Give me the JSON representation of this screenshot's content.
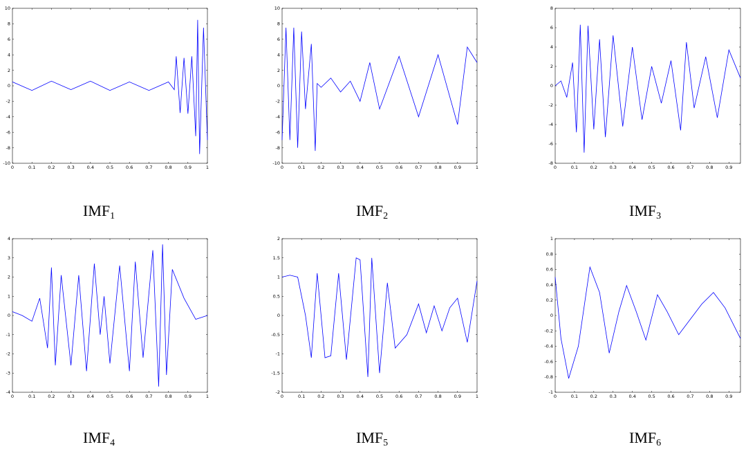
{
  "panels": [
    {
      "caption_main": "IMF",
      "caption_sub": "1"
    },
    {
      "caption_main": "IMF",
      "caption_sub": "2"
    },
    {
      "caption_main": "IMF",
      "caption_sub": "3"
    },
    {
      "caption_main": "IMF",
      "caption_sub": "4"
    },
    {
      "caption_main": "IMF",
      "caption_sub": "5"
    },
    {
      "caption_main": "IMF",
      "caption_sub": "6"
    }
  ],
  "chart_data": [
    {
      "type": "line",
      "title": "",
      "xlabel": "",
      "ylabel": "",
      "xlim": [
        0,
        1
      ],
      "ylim": [
        -10,
        10
      ],
      "xticks": [
        "0",
        "0.1",
        "0.2",
        "0.3",
        "0.4",
        "0.5",
        "0.6",
        "0.7",
        "0.8",
        "0.9",
        "1"
      ],
      "yticks": [
        "-10",
        "-8",
        "-6",
        "-4",
        "-2",
        "0",
        "2",
        "4",
        "6",
        "8",
        "10"
      ],
      "grid": false,
      "color": "#0000ff",
      "series": [
        {
          "x": [
            0,
            0.1,
            0.2,
            0.3,
            0.4,
            0.5,
            0.6,
            0.7,
            0.8,
            0.83,
            0.84,
            0.86,
            0.88,
            0.9,
            0.92,
            0.94,
            0.95,
            0.96,
            0.98,
            1
          ],
          "y": [
            0.5,
            -0.6,
            0.6,
            -0.5,
            0.6,
            -0.6,
            0.5,
            -0.6,
            0.5,
            -0.5,
            3.8,
            -3.5,
            3.6,
            -3.6,
            3.8,
            -6.5,
            8.5,
            -8.8,
            7.5,
            -7
          ]
        }
      ]
    },
    {
      "type": "line",
      "title": "",
      "xlabel": "",
      "ylabel": "",
      "xlim": [
        0,
        1
      ],
      "ylim": [
        -10,
        10
      ],
      "xticks": [
        "0",
        "0.1",
        "0.2",
        "0.3",
        "0.4",
        "0.5",
        "0.6",
        "0.7",
        "0.8",
        "0.9",
        "1"
      ],
      "yticks": [
        "-10",
        "-8",
        "-6",
        "-4",
        "-2",
        "0",
        "2",
        "4",
        "6",
        "8",
        "10"
      ],
      "grid": false,
      "color": "#0000ff",
      "series": [
        {
          "x": [
            0,
            0.02,
            0.04,
            0.06,
            0.08,
            0.1,
            0.12,
            0.15,
            0.17,
            0.18,
            0.2,
            0.25,
            0.3,
            0.35,
            0.4,
            0.45,
            0.5,
            0.6,
            0.7,
            0.8,
            0.9,
            0.95,
            1
          ],
          "y": [
            -7,
            7.5,
            -7,
            7.5,
            -8,
            7,
            -3,
            5.4,
            -8.4,
            0.3,
            -0.2,
            1,
            -0.8,
            0.6,
            -2,
            3,
            -3,
            3.8,
            -4,
            4,
            -5,
            5,
            3
          ]
        }
      ]
    },
    {
      "type": "line",
      "title": "",
      "xlabel": "",
      "ylabel": "",
      "xlim": [
        0,
        0.96
      ],
      "ylim": [
        -8,
        8
      ],
      "xticks": [
        "0",
        "0.1",
        "0.2",
        "0.3",
        "0.4",
        "0.5",
        "0.6",
        "0.7",
        "0.8",
        "0.9"
      ],
      "yticks": [
        "-8",
        "-6",
        "-4",
        "-2",
        "0",
        "2",
        "4",
        "6",
        "8"
      ],
      "grid": false,
      "color": "#0000ff",
      "series": [
        {
          "x": [
            0,
            0.03,
            0.06,
            0.09,
            0.11,
            0.13,
            0.15,
            0.17,
            0.2,
            0.23,
            0.26,
            0.3,
            0.35,
            0.4,
            0.45,
            0.5,
            0.55,
            0.6,
            0.65,
            0.68,
            0.72,
            0.78,
            0.84,
            0.9,
            0.96
          ],
          "y": [
            0,
            0.5,
            -1.2,
            2.4,
            -4.8,
            6.3,
            -6.9,
            6.2,
            -4.5,
            4.8,
            -5.3,
            5.2,
            -4.2,
            4,
            -3.5,
            2,
            -1.8,
            2.6,
            -4.6,
            4.5,
            -2.3,
            3,
            -3.3,
            3.7,
            0.8
          ]
        }
      ]
    },
    {
      "type": "line",
      "title": "",
      "xlabel": "",
      "ylabel": "",
      "xlim": [
        0,
        1
      ],
      "ylim": [
        -4,
        4
      ],
      "xticks": [
        "0",
        "0.1",
        "0.2",
        "0.3",
        "0.4",
        "0.5",
        "0.6",
        "0.7",
        "0.8",
        "0.9",
        "1"
      ],
      "yticks": [
        "-4",
        "-3",
        "-2",
        "-1",
        "0",
        "1",
        "2",
        "3",
        "4"
      ],
      "grid": false,
      "color": "#0000ff",
      "series": [
        {
          "x": [
            0,
            0.05,
            0.1,
            0.14,
            0.18,
            0.2,
            0.22,
            0.25,
            0.3,
            0.34,
            0.38,
            0.42,
            0.45,
            0.47,
            0.5,
            0.55,
            0.6,
            0.63,
            0.67,
            0.72,
            0.75,
            0.77,
            0.79,
            0.82,
            0.88,
            0.94,
            1
          ],
          "y": [
            0.2,
            0,
            -0.3,
            0.9,
            -1.7,
            2.5,
            -2.6,
            2.1,
            -2.6,
            2.1,
            -2.9,
            2.7,
            -1,
            1,
            -2.5,
            2.6,
            -2.9,
            2.8,
            -2.2,
            3.4,
            -3.7,
            3.7,
            -3.1,
            2.4,
            0.9,
            -0.2,
            0
          ]
        }
      ]
    },
    {
      "type": "line",
      "title": "",
      "xlabel": "",
      "ylabel": "",
      "xlim": [
        0,
        1
      ],
      "ylim": [
        -2,
        2
      ],
      "xticks": [
        "0",
        "0.1",
        "0.2",
        "0.3",
        "0.4",
        "0.5",
        "0.6",
        "0.7",
        "0.8",
        "0.9",
        "1"
      ],
      "yticks": [
        "-2",
        "-1.5",
        "-1",
        "-0.5",
        "0",
        "0.5",
        "1",
        "1.5",
        "2"
      ],
      "grid": false,
      "color": "#0000ff",
      "series": [
        {
          "x": [
            0,
            0.04,
            0.08,
            0.12,
            0.15,
            0.18,
            0.22,
            0.25,
            0.29,
            0.33,
            0.38,
            0.4,
            0.44,
            0.46,
            0.5,
            0.54,
            0.58,
            0.64,
            0.7,
            0.74,
            0.78,
            0.82,
            0.86,
            0.9,
            0.95,
            1
          ],
          "y": [
            1,
            1.05,
            1,
            0,
            -1.1,
            1.1,
            -1.1,
            -1.05,
            1.1,
            -1.15,
            1.5,
            1.45,
            -1.6,
            1.5,
            -1.5,
            0.85,
            -0.85,
            -0.5,
            0.3,
            -0.45,
            0.25,
            -0.4,
            0.2,
            0.45,
            -0.7,
            0.9
          ]
        }
      ]
    },
    {
      "type": "line",
      "title": "",
      "xlabel": "",
      "ylabel": "",
      "xlim": [
        0,
        0.96
      ],
      "ylim": [
        -1,
        1
      ],
      "xticks": [
        "0",
        "0.1",
        "0.2",
        "0.3",
        "0.4",
        "0.5",
        "0.6",
        "0.7",
        "0.8",
        "0.9"
      ],
      "yticks": [
        "-1",
        "-0.8",
        "-0.6",
        "-0.4",
        "-0.2",
        "0",
        "0.2",
        "0.4",
        "0.6",
        "0.8",
        "1"
      ],
      "grid": false,
      "color": "#0000ff",
      "series": [
        {
          "x": [
            0,
            0.03,
            0.07,
            0.12,
            0.18,
            0.23,
            0.28,
            0.33,
            0.37,
            0.42,
            0.47,
            0.53,
            0.58,
            0.64,
            0.7,
            0.76,
            0.82,
            0.88,
            0.96
          ],
          "y": [
            0.5,
            -0.3,
            -0.82,
            -0.4,
            0.63,
            0.3,
            -0.49,
            0.05,
            0.39,
            0.05,
            -0.32,
            0.27,
            0.05,
            -0.25,
            -0.05,
            0.15,
            0.3,
            0.1,
            -0.3
          ]
        }
      ]
    }
  ]
}
